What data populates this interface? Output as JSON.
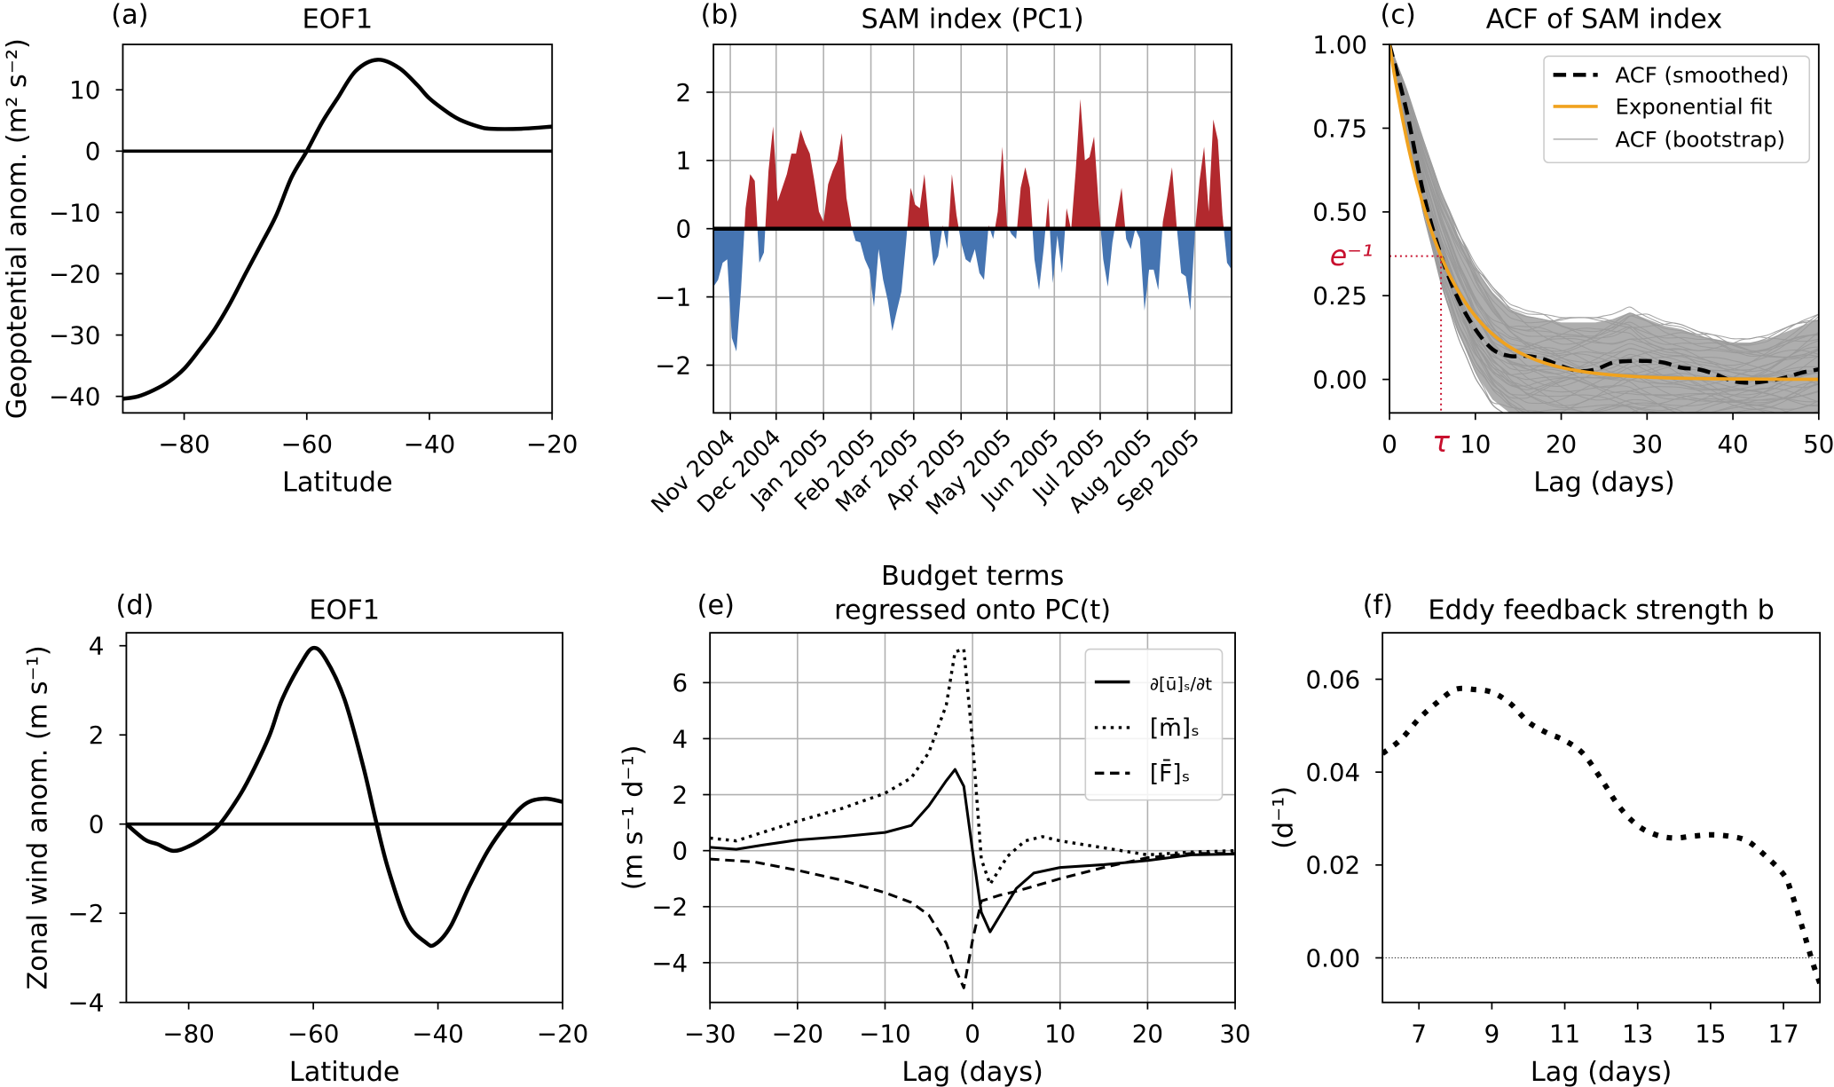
{
  "chart_data": [
    {
      "panel_label": "(a)",
      "type": "line",
      "title": "EOF1",
      "xlabel": "Latitude",
      "ylabel": "Geopotential anom. (m² s⁻²)",
      "xlim": [
        -90,
        -20
      ],
      "ylim": [
        -42.7,
        17.4
      ],
      "xticks": [
        -80,
        -60,
        -40,
        -20
      ],
      "xtick_labels": [
        "−80",
        "−60",
        "−40",
        "−20"
      ],
      "yticks": [
        -40,
        -30,
        -20,
        -10,
        0,
        10
      ],
      "ytick_labels": [
        "−40",
        "−30",
        "−20",
        "−10",
        "0",
        "10"
      ],
      "grid": false,
      "hline": 0,
      "series": [
        {
          "style": "solid",
          "color": "#000000",
          "smooth": true,
          "x": [
            -90,
            -87.5,
            -85,
            -82.5,
            -80,
            -77.5,
            -75,
            -72.5,
            -70,
            -67.5,
            -65,
            -62.5,
            -60,
            -57.5,
            -55,
            -52,
            -48.5,
            -45,
            -42,
            -40,
            -37,
            -35,
            -32,
            -30,
            -25,
            -20
          ],
          "y": [
            -40.4,
            -40,
            -39,
            -37.6,
            -35.5,
            -32.4,
            -29,
            -24.8,
            -20,
            -15.3,
            -10.5,
            -4.3,
            0,
            4.7,
            8.6,
            13.1,
            14.9,
            13.6,
            10.8,
            8.6,
            6.3,
            5.1,
            4.0,
            3.65,
            3.65,
            4.0
          ]
        }
      ]
    },
    {
      "panel_label": "(b)",
      "type": "area",
      "title": "SAM index (PC1)",
      "xlim": [
        "2004-10-21",
        "2005-09-25"
      ],
      "ylim": [
        -2.7,
        2.7
      ],
      "xticks": [
        "2004-11-01",
        "2004-12-01",
        "2005-01-01",
        "2005-02-01",
        "2005-03-01",
        "2005-04-01",
        "2005-05-01",
        "2005-06-01",
        "2005-07-01",
        "2005-08-01",
        "2005-09-01"
      ],
      "xtick_labels": [
        "Nov 2004",
        "Dec 2004",
        "Jan 2005",
        "Feb 2005",
        "Mar 2005",
        "Apr 2005",
        "May 2005",
        "Jun 2005",
        "Jul 2005",
        "Aug 2005",
        "Sep 2005"
      ],
      "yticks": [
        -2,
        -1,
        0,
        1,
        2
      ],
      "ytick_labels": [
        "−2",
        "−1",
        "0",
        "1",
        "2"
      ],
      "grid": true,
      "hline": 0,
      "colors": {
        "positive": "#b2292e",
        "negative": "#4574b1"
      },
      "x": [
        "2004-10-21",
        "2004-10-24",
        "2004-10-27",
        "2004-10-30",
        "2004-11-02",
        "2004-11-05",
        "2004-11-08",
        "2004-11-11",
        "2004-11-14",
        "2004-11-17",
        "2004-11-20",
        "2004-11-23",
        "2004-11-26",
        "2004-11-29",
        "2004-12-02",
        "2004-12-05",
        "2004-12-08",
        "2004-12-11",
        "2004-12-14",
        "2004-12-17",
        "2004-12-20",
        "2004-12-23",
        "2004-12-26",
        "2004-12-29",
        "2005-01-01",
        "2005-01-04",
        "2005-01-07",
        "2005-01-10",
        "2005-01-13",
        "2005-01-16",
        "2005-01-19",
        "2005-01-22",
        "2005-01-25",
        "2005-01-28",
        "2005-01-31",
        "2005-02-03",
        "2005-02-06",
        "2005-02-09",
        "2005-02-12",
        "2005-02-15",
        "2005-02-18",
        "2005-02-21",
        "2005-02-24",
        "2005-02-27",
        "2005-03-02",
        "2005-03-05",
        "2005-03-08",
        "2005-03-11",
        "2005-03-14",
        "2005-03-17",
        "2005-03-20",
        "2005-03-23",
        "2005-03-26",
        "2005-03-29",
        "2005-04-01",
        "2005-04-04",
        "2005-04-07",
        "2005-04-10",
        "2005-04-13",
        "2005-04-16",
        "2005-04-19",
        "2005-04-22",
        "2005-04-25",
        "2005-04-28",
        "2005-05-01",
        "2005-05-04",
        "2005-05-07",
        "2005-05-10",
        "2005-05-13",
        "2005-05-16",
        "2005-05-19",
        "2005-05-22",
        "2005-05-25",
        "2005-05-28",
        "2005-05-31",
        "2005-06-03",
        "2005-06-06",
        "2005-06-09",
        "2005-06-12",
        "2005-06-15",
        "2005-06-18",
        "2005-06-21",
        "2005-06-24",
        "2005-06-27",
        "2005-06-30",
        "2005-07-03",
        "2005-07-06",
        "2005-07-09",
        "2005-07-12",
        "2005-07-15",
        "2005-07-18",
        "2005-07-21",
        "2005-07-24",
        "2005-07-27",
        "2005-07-30",
        "2005-08-02",
        "2005-08-05",
        "2005-08-08",
        "2005-08-11",
        "2005-08-14",
        "2005-08-17",
        "2005-08-20",
        "2005-08-23",
        "2005-08-26",
        "2005-08-29",
        "2005-09-01",
        "2005-09-04",
        "2005-09-07",
        "2005-09-10",
        "2005-09-13",
        "2005-09-16",
        "2005-09-19",
        "2005-09-22",
        "2005-09-25"
      ],
      "y": [
        -0.85,
        -0.75,
        -0.5,
        -0.45,
        -1.6,
        -1.8,
        -0.9,
        0.3,
        0.8,
        0.7,
        -0.5,
        -0.35,
        0.85,
        1.5,
        0.4,
        0.6,
        0.8,
        1.1,
        1.1,
        1.45,
        1.25,
        1.1,
        0.7,
        0.25,
        0.1,
        0.65,
        0.85,
        1.0,
        1.4,
        0.45,
        0.05,
        -0.18,
        -0.2,
        -0.45,
        -0.6,
        -1.15,
        -0.3,
        -0.75,
        -1.05,
        -1.5,
        -1.2,
        -0.92,
        -0.2,
        0.6,
        0.35,
        0.3,
        0.8,
        0.05,
        -0.55,
        -0.4,
        0.05,
        -0.3,
        0.8,
        0.2,
        -0.2,
        -0.45,
        -0.5,
        -0.3,
        -0.65,
        -0.75,
        0.05,
        -0.15,
        0.25,
        1.2,
        0.05,
        -0.08,
        -0.15,
        0.6,
        0.9,
        0.6,
        -0.45,
        -0.9,
        -0.3,
        0.45,
        -0.8,
        -0.1,
        -0.65,
        0.3,
        -0.02,
        0.85,
        1.9,
        1.0,
        1.05,
        1.35,
        0.35,
        -0.45,
        -0.85,
        -0.2,
        0.2,
        0.6,
        -0.15,
        -0.3,
        0.0,
        -0.15,
        -1.2,
        -0.6,
        -0.6,
        -0.9,
        0.1,
        0.48,
        0.9,
        0.05,
        -0.65,
        -0.7,
        -1.2,
        -0.05,
        0.7,
        1.2,
        0.25,
        1.6,
        1.3,
        0.2,
        -0.5,
        -0.6
      ]
    },
    {
      "panel_label": "(c)",
      "type": "line",
      "title": "ACF of SAM index",
      "xlabel": "Lag (days)",
      "xlim": [
        0,
        50
      ],
      "ylim": [
        -0.1,
        1.0
      ],
      "xticks": [
        0,
        10,
        20,
        30,
        40,
        50
      ],
      "xtick_labels": [
        "0",
        "10",
        "20",
        "30",
        "40",
        "50"
      ],
      "yticks": [
        0,
        0.25,
        0.5,
        0.75,
        1.0
      ],
      "ytick_labels": [
        "0.00",
        "0.25",
        "0.50",
        "0.75",
        "1.00"
      ],
      "grid": false,
      "legend_position": "top-right",
      "tau": 6.0,
      "e_inv_value": 0.368,
      "annotations": {
        "e_inv_label": "e⁻¹",
        "tau_label": "τ",
        "color": "#c8102e"
      },
      "bootstrap": {
        "name": "ACF (bootstrap)",
        "color": "#a0a0a0",
        "x": [
          0,
          2,
          4,
          6,
          8,
          10,
          12,
          14,
          16,
          18,
          20,
          22,
          24,
          26,
          28,
          30,
          32,
          34,
          36,
          38,
          40,
          42,
          44,
          46,
          48,
          50
        ],
        "upper": [
          1,
          0.86,
          0.7,
          0.55,
          0.43,
          0.33,
          0.26,
          0.21,
          0.19,
          0.18,
          0.17,
          0.17,
          0.17,
          0.18,
          0.2,
          0.18,
          0.16,
          0.15,
          0.13,
          0.12,
          0.11,
          0.11,
          0.12,
          0.14,
          0.16,
          0.18
        ],
        "lower": [
          1,
          0.74,
          0.5,
          0.3,
          0.14,
          0.02,
          -0.06,
          -0.1,
          -0.12,
          -0.12,
          -0.12,
          -0.12,
          -0.12,
          -0.12,
          -0.12,
          -0.12,
          -0.12,
          -0.12,
          -0.12,
          -0.12,
          -0.12,
          -0.12,
          -0.12,
          -0.12,
          -0.12,
          -0.12
        ]
      },
      "series": [
        {
          "name": "ACF (smoothed)",
          "style": "dashed",
          "color": "#000000",
          "smooth": true,
          "x": [
            0,
            2,
            4,
            6,
            8,
            10,
            12,
            14,
            16,
            18,
            20,
            22,
            24,
            26,
            28,
            30,
            32,
            34,
            36,
            38,
            40,
            42,
            44,
            46,
            48,
            50
          ],
          "y": [
            1,
            0.8,
            0.55,
            0.37,
            0.24,
            0.15,
            0.09,
            0.07,
            0.07,
            0.06,
            0.04,
            0.025,
            0.03,
            0.05,
            0.055,
            0.055,
            0.05,
            0.035,
            0.03,
            0.015,
            -0.005,
            -0.01,
            -0.005,
            0.005,
            0.02,
            0.03
          ]
        },
        {
          "name": "Exponential fit",
          "style": "solid",
          "color": "#f0a21e",
          "function": "exp(-lag/tau)"
        }
      ]
    },
    {
      "panel_label": "(d)",
      "type": "line",
      "title": "EOF1",
      "xlabel": "Latitude",
      "ylabel": "Zonal wind anom. (m s⁻¹)",
      "xlim": [
        -90,
        -20
      ],
      "ylim": [
        -4,
        4.29
      ],
      "xticks": [
        -80,
        -60,
        -40,
        -20
      ],
      "xtick_labels": [
        "−80",
        "−60",
        "−40",
        "−20"
      ],
      "yticks": [
        -4,
        -2,
        0,
        2,
        4
      ],
      "ytick_labels": [
        "−4",
        "−2",
        "0",
        "2",
        "4"
      ],
      "grid": false,
      "hline": 0,
      "series": [
        {
          "style": "solid",
          "color": "#000000",
          "smooth": true,
          "x": [
            -90,
            -87,
            -85,
            -82.5,
            -80,
            -77,
            -75,
            -72,
            -70,
            -67,
            -65,
            -62,
            -60,
            -58,
            -55,
            -52,
            -50,
            -48,
            -45,
            -42,
            -40.5,
            -38,
            -35,
            -32,
            -29,
            -26,
            -23,
            -20
          ],
          "y": [
            0,
            -0.35,
            -0.45,
            -0.6,
            -0.5,
            -0.25,
            0,
            0.6,
            1.1,
            2.0,
            2.8,
            3.6,
            3.95,
            3.7,
            2.8,
            1.3,
            0.1,
            -1.0,
            -2.2,
            -2.65,
            -2.7,
            -2.3,
            -1.4,
            -0.6,
            0,
            0.45,
            0.57,
            0.5
          ]
        }
      ]
    },
    {
      "panel_label": "(e)",
      "type": "line",
      "title": [
        "Budget terms",
        "regressed onto PC(t)"
      ],
      "xlabel": "Lag (days)",
      "ylabel": "(m s⁻¹ d⁻¹)",
      "xlim": [
        -30,
        30
      ],
      "ylim": [
        -5.42,
        7.78
      ],
      "xticks": [
        -30,
        -20,
        -10,
        0,
        10,
        20,
        30
      ],
      "xtick_labels": [
        "−30",
        "−20",
        "−10",
        "0",
        "10",
        "20",
        "30"
      ],
      "yticks": [
        -4,
        -2,
        0,
        2,
        4,
        6
      ],
      "ytick_labels": [
        "−4",
        "−2",
        "0",
        "2",
        "4",
        "6"
      ],
      "grid": true,
      "legend_position": "top-right",
      "series": [
        {
          "name": "∂[ū]ₛ/∂t",
          "style": "solid",
          "color": "#000000",
          "x": [
            -30,
            -27,
            -24,
            -20,
            -15,
            -10,
            -7,
            -5,
            -3,
            -2,
            -1,
            0,
            1,
            2,
            5,
            7,
            10,
            15,
            20,
            25,
            30
          ],
          "y": [
            0.12,
            0.05,
            0.2,
            0.38,
            0.5,
            0.65,
            0.9,
            1.6,
            2.5,
            2.9,
            2.3,
            0.0,
            -2.2,
            -2.9,
            -1.35,
            -0.8,
            -0.6,
            -0.5,
            -0.35,
            -0.15,
            -0.12
          ]
        },
        {
          "name": "[m̄]ₛ",
          "style": "dotted",
          "color": "#000000",
          "x": [
            -30,
            -27,
            -24,
            -20,
            -15,
            -10,
            -7,
            -5,
            -3,
            -2,
            -1,
            0,
            1,
            2,
            4,
            6,
            8,
            10,
            15,
            20,
            25,
            30
          ],
          "y": [
            0.45,
            0.35,
            0.65,
            1.05,
            1.5,
            2.05,
            2.6,
            3.5,
            5.2,
            7.1,
            7.2,
            3.9,
            -0.3,
            -1.2,
            -0.2,
            0.35,
            0.5,
            0.35,
            0.1,
            -0.15,
            -0.05,
            0.0
          ]
        },
        {
          "name": "[F̄]ₛ",
          "style": "dashed",
          "color": "#000000",
          "x": [
            -30,
            -25,
            -20,
            -15,
            -10,
            -7,
            -5,
            -3,
            -2,
            -1,
            0,
            1,
            3,
            5,
            10,
            15,
            20,
            25,
            30
          ],
          "y": [
            -0.3,
            -0.4,
            -0.7,
            -1.05,
            -1.5,
            -1.85,
            -2.3,
            -3.3,
            -4.2,
            -4.9,
            -3.2,
            -1.8,
            -1.6,
            -1.45,
            -1.0,
            -0.6,
            -0.25,
            -0.1,
            -0.1
          ]
        }
      ]
    },
    {
      "panel_label": "(f)",
      "type": "line",
      "title": "Eddy feedback strength b",
      "xlabel": "Lag (days)",
      "ylabel": "(d⁻¹)",
      "xlim": [
        6,
        18
      ],
      "ylim": [
        -0.0096,
        0.07
      ],
      "xticks": [
        7,
        9,
        11,
        13,
        15,
        17
      ],
      "xtick_labels": [
        "7",
        "9",
        "11",
        "13",
        "15",
        "17"
      ],
      "yticks": [
        0,
        0.02,
        0.04,
        0.06
      ],
      "ytick_labels": [
        "0.00",
        "0.02",
        "0.04",
        "0.06"
      ],
      "grid": false,
      "hline_dotted": 0,
      "series": [
        {
          "style": "dotted-thick",
          "color": "#000000",
          "smooth": true,
          "x": [
            6,
            6.5,
            7,
            7.5,
            8,
            8.5,
            9,
            9.5,
            10,
            10.5,
            11,
            11.5,
            12,
            12.5,
            13,
            13.5,
            14,
            14.5,
            15,
            15.5,
            16,
            16.5,
            17,
            17.2,
            17.5,
            17.8,
            18
          ],
          "y": [
            0.044,
            0.047,
            0.0515,
            0.055,
            0.0578,
            0.0578,
            0.0572,
            0.0548,
            0.0508,
            0.0485,
            0.0468,
            0.044,
            0.0385,
            0.0325,
            0.0285,
            0.0265,
            0.0258,
            0.0262,
            0.0265,
            0.0262,
            0.0252,
            0.022,
            0.018,
            0.0145,
            0.007,
            -0.001,
            -0.0055
          ]
        }
      ]
    }
  ]
}
